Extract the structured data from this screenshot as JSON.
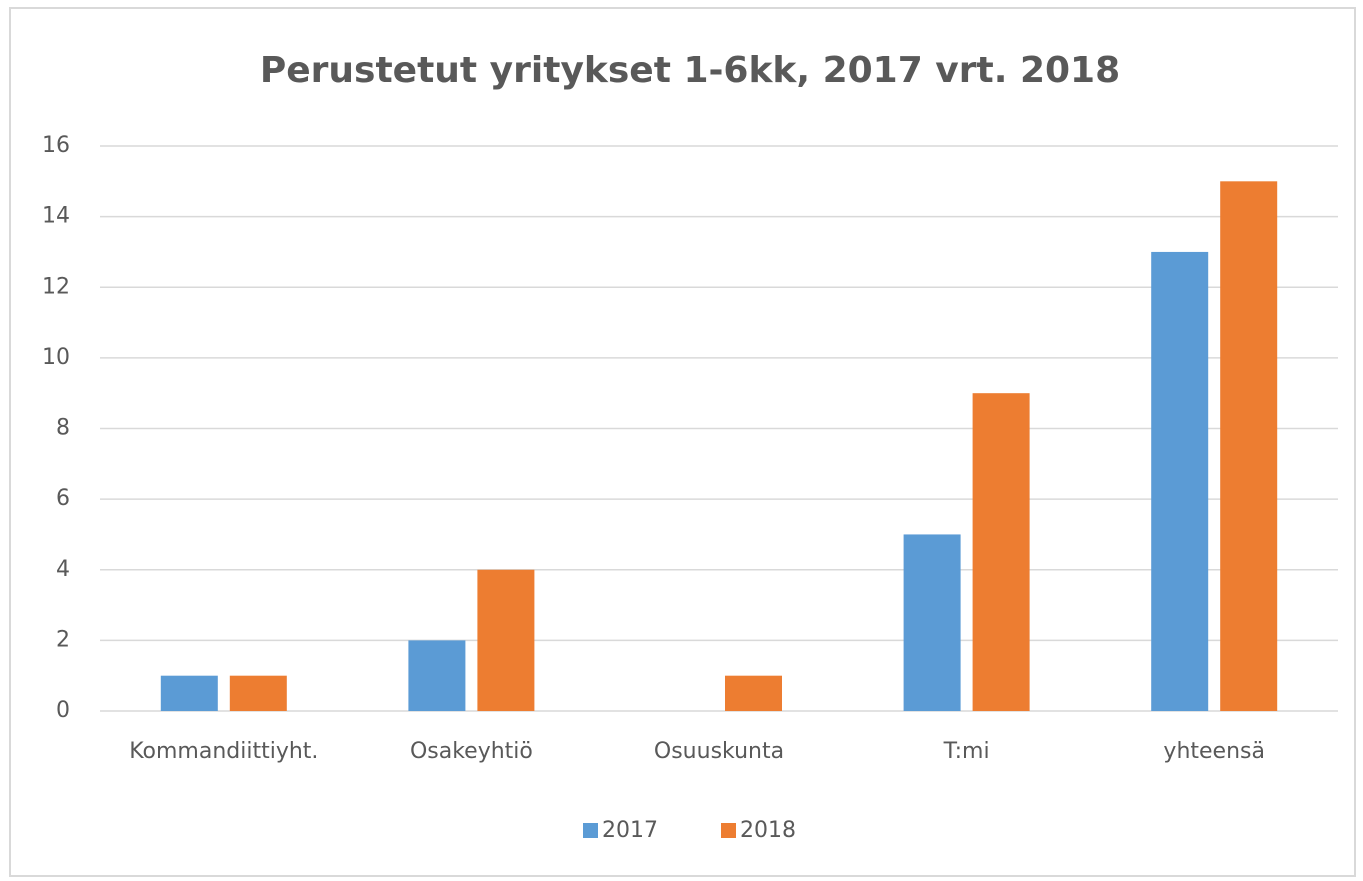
{
  "chart_data": {
    "type": "bar",
    "title": "Perustetut yritykset 1-6kk, 2017 vrt. 2018",
    "categories": [
      "Kommandiittiyht.",
      "Osakeyhtiö",
      "Osuuskunta",
      "T:mi",
      "yhteensä"
    ],
    "series": [
      {
        "name": "2017",
        "color": "#5b9bd5",
        "values": [
          1,
          2,
          0,
          5,
          13
        ]
      },
      {
        "name": "2018",
        "color": "#ed7d31",
        "values": [
          1,
          4,
          1,
          9,
          15
        ]
      }
    ],
    "ylim": [
      0,
      16
    ],
    "yticks": [
      0,
      2,
      4,
      6,
      8,
      10,
      12,
      14,
      16
    ],
    "grid": true,
    "legend": "bottom"
  }
}
